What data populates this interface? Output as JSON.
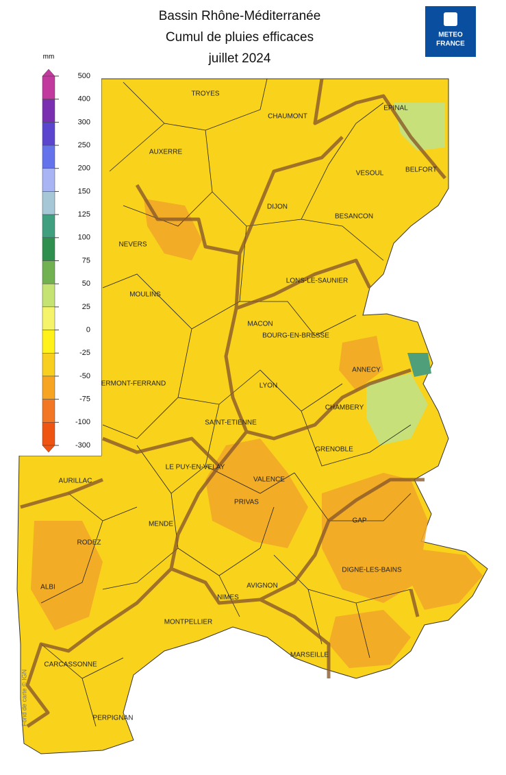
{
  "header": {
    "title_lines": [
      "Bassin Rhône-Méditerranée",
      "Cumul de pluies efficaces",
      "juillet 2024"
    ]
  },
  "logo": {
    "lines": [
      "METEO",
      "FRANCE"
    ]
  },
  "legend": {
    "unit": "mm",
    "ticks": [
      500,
      400,
      300,
      250,
      200,
      150,
      125,
      100,
      75,
      50,
      25,
      0,
      -25,
      -50,
      -75,
      -100,
      -300
    ],
    "colors": [
      "#c23a9e",
      "#7a2fb0",
      "#5b45cf",
      "#6472ec",
      "#a8b4f4",
      "#a6c8d6",
      "#3f9f7e",
      "#2f8f4f",
      "#72b152",
      "#c4e372",
      "#f4f36a",
      "#fff21a",
      "#f8cf1e",
      "#f7a423",
      "#f27623",
      "#ef5412"
    ]
  },
  "map": {
    "cities": [
      "TROYES",
      "CHAUMONT",
      "EPINAL",
      "AUXERRE",
      "VESOUL",
      "BELFORT",
      "DIJON",
      "BESANCON",
      "NEVERS",
      "LONS-LE-SAUNIER",
      "MOULINS",
      "MACON",
      "BOURG-EN-BRESSE",
      "ERMONT-FERRAND",
      "ANNECY",
      "LYON",
      "CHAMBERY",
      "SAINT-ETIENNE",
      "GRENOBLE",
      "LE PUY-EN-VELAY",
      "AURILLAC",
      "VALENCE",
      "PRIVAS",
      "GAP",
      "MENDE",
      "RODEZ",
      "DIGNE-LES-BAINS",
      "AVIGNON",
      "ALBI",
      "NIMES",
      "MONTPELLIER",
      "MARSEILLE",
      "CARCASSONNE",
      "PERPIGNAN"
    ],
    "credit": "Fond de carte © IGN"
  }
}
